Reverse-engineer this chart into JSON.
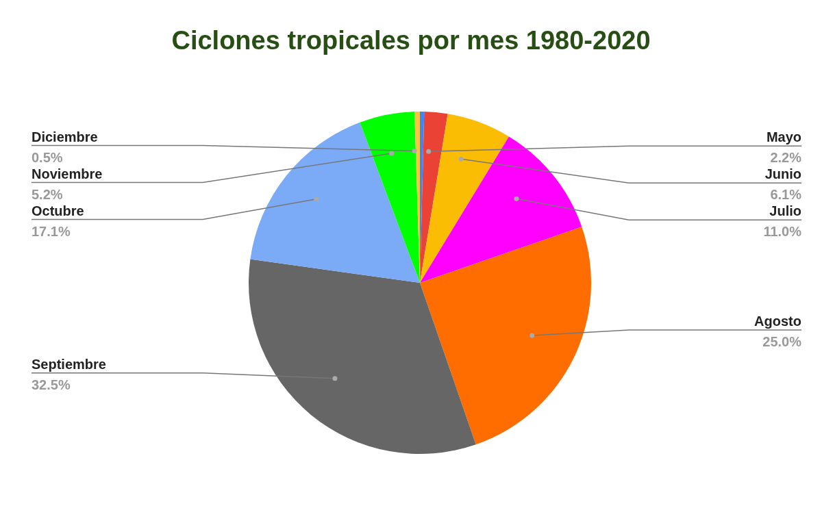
{
  "chart_data": {
    "type": "pie",
    "title": "Ciclones tropicales por mes 1980-2020",
    "categories": [
      null,
      "Mayo",
      "Junio",
      "Julio",
      "Agosto",
      "Septiembre",
      "Octubre",
      "Noviembre",
      "Diciembre"
    ],
    "values": [
      0.4,
      2.2,
      6.1,
      11.0,
      25.0,
      32.5,
      17.1,
      5.2,
      0.5
    ],
    "value_labels": [
      null,
      "2.2%",
      "6.1%",
      "11.0%",
      "25.0%",
      "32.5%",
      "17.1%",
      "5.2%",
      "0.5%"
    ],
    "colors": [
      "#4285f4",
      "#ea4335",
      "#fbbc04",
      "#ff00ff",
      "#ff6d01",
      "#666666",
      "#7baaf7",
      "#00ff00",
      "#f6c344"
    ],
    "legend": false
  }
}
